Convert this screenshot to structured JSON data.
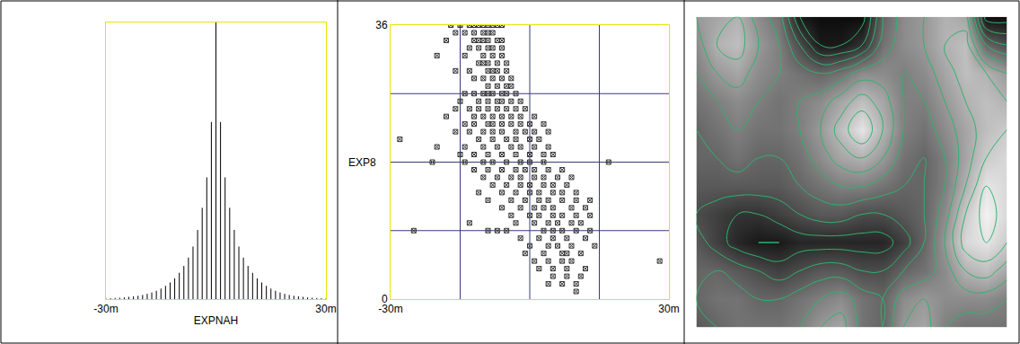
{
  "chart_data": [
    {
      "type": "stem",
      "xlabel": "EXPNAH",
      "color": "#000000",
      "tick_labels": "x",
      "xlim": [
        -30,
        30
      ],
      "ylim": [
        0,
        1
      ],
      "xticks": [
        {
          "value": -30,
          "label": "-30m"
        },
        {
          "value": 30,
          "label": "30m"
        }
      ],
      "x": [
        -30,
        -28.75,
        -27.5,
        -26.25,
        -25,
        -23.75,
        -22.5,
        -21.25,
        -20,
        -18.75,
        -17.5,
        -16.25,
        -15,
        -13.75,
        -12.5,
        -11.25,
        -10,
        -8.75,
        -7.5,
        -6.25,
        -5,
        -3.75,
        -2.5,
        -1.25,
        0,
        1.25,
        2.5,
        3.75,
        5,
        6.25,
        7.5,
        8.75,
        10,
        11.25,
        12.5,
        13.75,
        15,
        16.25,
        17.5,
        18.75,
        20,
        21.25,
        22.5,
        23.75,
        25,
        26.25,
        27.5,
        28.75,
        30
      ],
      "values": [
        0.002,
        0.003,
        0.004,
        0.005,
        0.006,
        0.008,
        0.01,
        0.012,
        0.015,
        0.019,
        0.024,
        0.03,
        0.038,
        0.048,
        0.06,
        0.075,
        0.095,
        0.12,
        0.15,
        0.19,
        0.25,
        0.33,
        0.44,
        0.64,
        1.0,
        0.64,
        0.44,
        0.33,
        0.25,
        0.19,
        0.15,
        0.12,
        0.095,
        0.075,
        0.06,
        0.048,
        0.038,
        0.03,
        0.024,
        0.019,
        0.015,
        0.012,
        0.01,
        0.008,
        0.006,
        0.005,
        0.004,
        0.003,
        0.002
      ]
    },
    {
      "type": "scatter",
      "ylabel": "EXP8",
      "color": "#333333",
      "marker": "square-x-open",
      "grid": true,
      "xlim": [
        -30,
        30
      ],
      "ylim": [
        0,
        36
      ],
      "xticks": [
        {
          "value": -30,
          "label": "-30m"
        },
        {
          "value": 30,
          "label": "30m"
        }
      ],
      "yticks": [
        0,
        36
      ],
      "grid_lines": {
        "x": [
          -15,
          0,
          15
        ],
        "y": [
          9,
          18,
          27
        ]
      },
      "rows": [
        {
          "y": 36,
          "x": [
            -17,
            -15,
            -13,
            -12,
            -11,
            -10,
            -9,
            -8,
            -7,
            -6
          ]
        },
        {
          "y": 35,
          "x": [
            -16,
            -14,
            -12,
            -10,
            -9,
            -8
          ]
        },
        {
          "y": 34,
          "x": [
            -18,
            -12,
            -11,
            -10,
            -9,
            -7,
            -6
          ]
        },
        {
          "y": 33,
          "x": [
            -13,
            -11,
            -9,
            -8,
            -6
          ]
        },
        {
          "y": 32,
          "x": [
            -20,
            -14,
            -10,
            -8,
            -6
          ]
        },
        {
          "y": 31,
          "x": [
            -11,
            -10,
            -9,
            -7,
            -5
          ]
        },
        {
          "y": 30,
          "x": [
            -16,
            -13,
            -9,
            -8,
            -7,
            -5
          ]
        },
        {
          "y": 29,
          "x": [
            -12,
            -10,
            -8,
            -6,
            -4
          ]
        },
        {
          "y": 28,
          "x": [
            -9,
            -7,
            -5,
            -4
          ]
        },
        {
          "y": 27,
          "x": [
            -14,
            -12,
            -10,
            -9,
            -8,
            -6,
            -5,
            -3
          ]
        },
        {
          "y": 26,
          "x": [
            -15,
            -11,
            -9,
            -7,
            -6,
            -4,
            -2
          ]
        },
        {
          "y": 25,
          "x": [
            -16,
            -13,
            -11,
            -9,
            -7,
            -5,
            -3,
            -1
          ]
        },
        {
          "y": 24,
          "x": [
            -18,
            -12,
            -10,
            -8,
            -6,
            -4,
            -2,
            1
          ]
        },
        {
          "y": 23,
          "x": [
            -14,
            -12,
            -9,
            -8,
            -6,
            -4,
            -2,
            0,
            3
          ]
        },
        {
          "y": 22,
          "x": [
            -16,
            -13,
            -10,
            -8,
            -6,
            -3,
            -1,
            1,
            4
          ]
        },
        {
          "y": 21,
          "x": [
            -28,
            -11,
            -8,
            -5,
            -3,
            0,
            2
          ]
        },
        {
          "y": 20,
          "x": [
            -20,
            -14,
            -10,
            -7,
            -4,
            -2,
            1,
            4
          ]
        },
        {
          "y": 19,
          "x": [
            -15,
            -12,
            -9,
            -6,
            -3,
            0,
            3,
            5
          ]
        },
        {
          "y": 18,
          "x": [
            -21,
            -14,
            -10,
            -8,
            -5,
            -2,
            0,
            3,
            17
          ]
        },
        {
          "y": 17,
          "x": [
            -12,
            -9,
            -6,
            -3,
            -1,
            1,
            4,
            7
          ]
        },
        {
          "y": 16,
          "x": [
            -10,
            -7,
            -4,
            -2,
            1,
            3,
            6,
            9
          ]
        },
        {
          "y": 15,
          "x": [
            -8,
            -5,
            -2,
            0,
            3,
            5,
            8
          ]
        },
        {
          "y": 14,
          "x": [
            -11,
            -6,
            -3,
            0,
            2,
            5,
            7,
            10
          ]
        },
        {
          "y": 13,
          "x": [
            -9,
            -4,
            -1,
            2,
            4,
            7,
            10,
            13
          ]
        },
        {
          "y": 12,
          "x": [
            -6,
            -2,
            1,
            3,
            5,
            9,
            12
          ]
        },
        {
          "y": 11,
          "x": [
            -4,
            0,
            2,
            5,
            7,
            10,
            13
          ]
        },
        {
          "y": 10,
          "x": [
            -13,
            -3,
            1,
            4,
            6,
            9,
            11
          ]
        },
        {
          "y": 9,
          "x": [
            -25,
            -9,
            -7,
            -5,
            3,
            5,
            7,
            10,
            13
          ]
        },
        {
          "y": 8,
          "x": [
            -2,
            2,
            5,
            8,
            12
          ]
        },
        {
          "y": 7,
          "x": [
            0,
            4,
            6,
            9,
            14
          ]
        },
        {
          "y": 6,
          "x": [
            -1,
            3,
            7,
            8,
            11
          ]
        },
        {
          "y": 5,
          "x": [
            1,
            4,
            7,
            9,
            28
          ]
        },
        {
          "y": 4,
          "x": [
            2,
            5,
            8,
            12
          ]
        },
        {
          "y": 3,
          "x": [
            5,
            8,
            11
          ]
        },
        {
          "y": 2,
          "x": [
            4,
            7,
            10
          ]
        },
        {
          "y": 1,
          "x": [
            10
          ]
        }
      ]
    },
    {
      "type": "contour",
      "tick_labels": false,
      "color": "#2fb36f",
      "zlim": [
        0,
        100
      ],
      "levels": [
        10,
        20,
        30,
        40,
        50,
        60,
        70,
        80,
        90
      ],
      "z": [
        [
          60,
          65,
          70,
          55,
          45,
          10,
          5,
          5,
          5,
          40,
          55,
          60,
          70,
          65,
          5,
          5
        ],
        [
          55,
          70,
          75,
          60,
          50,
          30,
          10,
          10,
          20,
          45,
          55,
          60,
          70,
          75,
          40,
          30
        ],
        [
          50,
          60,
          65,
          55,
          50,
          45,
          40,
          45,
          55,
          55,
          50,
          55,
          65,
          75,
          70,
          60
        ],
        [
          45,
          50,
          55,
          50,
          45,
          50,
          55,
          65,
          75,
          65,
          50,
          50,
          60,
          70,
          75,
          70
        ],
        [
          40,
          45,
          50,
          45,
          45,
          50,
          60,
          75,
          90,
          70,
          50,
          45,
          55,
          65,
          75,
          80
        ],
        [
          40,
          40,
          45,
          40,
          40,
          45,
          55,
          65,
          70,
          60,
          45,
          40,
          50,
          65,
          80,
          85
        ],
        [
          35,
          35,
          35,
          35,
          35,
          40,
          45,
          50,
          50,
          45,
          40,
          40,
          50,
          70,
          90,
          85
        ],
        [
          30,
          25,
          20,
          20,
          25,
          30,
          35,
          35,
          30,
          30,
          35,
          40,
          55,
          80,
          95,
          85
        ],
        [
          35,
          25,
          15,
          10,
          10,
          15,
          15,
          15,
          15,
          15,
          25,
          40,
          60,
          85,
          90,
          80
        ],
        [
          40,
          40,
          35,
          30,
          25,
          30,
          35,
          35,
          30,
          30,
          40,
          45,
          55,
          70,
          75,
          65
        ],
        [
          40,
          45,
          45,
          40,
          40,
          45,
          50,
          55,
          45,
          40,
          55,
          60,
          55,
          55,
          55,
          50
        ],
        [
          35,
          40,
          45,
          45,
          45,
          50,
          60,
          65,
          45,
          40,
          60,
          65,
          50,
          45,
          45,
          45
        ]
      ]
    }
  ]
}
